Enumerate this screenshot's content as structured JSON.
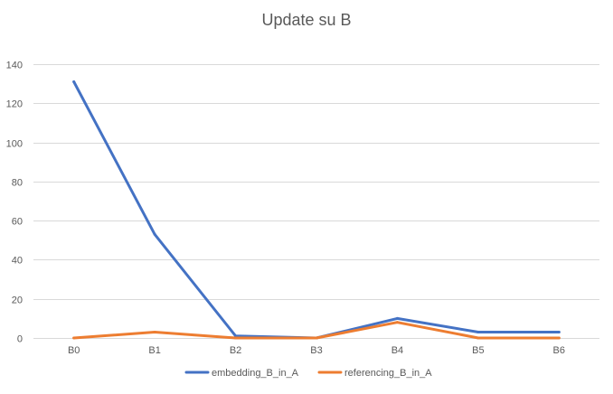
{
  "chart_data": {
    "type": "line",
    "title": "Update su B",
    "categories": [
      "B0",
      "B1",
      "B2",
      "B3",
      "B4",
      "B5",
      "B6"
    ],
    "series": [
      {
        "name": "embedding_B_in_A",
        "color": "#4472C4",
        "values": [
          131,
          53,
          1,
          0,
          10,
          3,
          3
        ]
      },
      {
        "name": "referencing_B_in_A",
        "color": "#ED7D31",
        "values": [
          0,
          3,
          0,
          0,
          8,
          0,
          0
        ]
      }
    ],
    "ylim": [
      0,
      140
    ],
    "yticks": [
      0,
      20,
      40,
      60,
      80,
      100,
      120,
      140
    ],
    "grid": true,
    "legend_position": "bottom"
  }
}
